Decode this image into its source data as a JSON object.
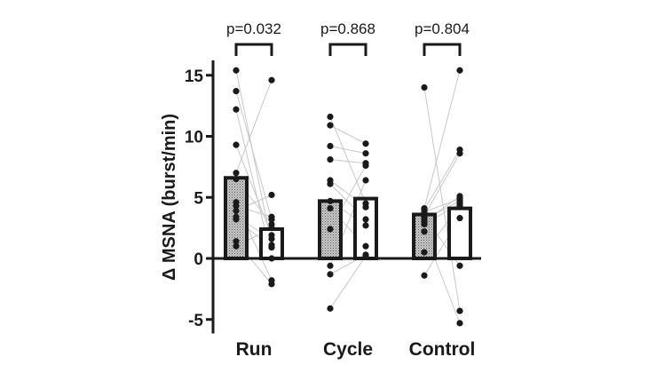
{
  "chart_data": {
    "type": "bar",
    "ylabel": "Δ MSNA (burst/min)",
    "ylim": [
      -6,
      16
    ],
    "yticks": [
      -5,
      0,
      5,
      10,
      15
    ],
    "ytick_labels": [
      "-5",
      "0",
      "5",
      "10",
      "15"
    ],
    "categories": [
      "Run",
      "Cycle",
      "Control"
    ],
    "p_values": [
      "p=0.032",
      "p=0.868",
      "p=0.804"
    ],
    "colors": {
      "pre_bar": "#a8a8a8",
      "post_bar": "#ffffff",
      "outline": "#1a1a1a",
      "lines": "#c8c8c8",
      "points": "#1a1a1a"
    },
    "groups": [
      {
        "category": "Run",
        "bars": [
          6.6,
          2.4
        ],
        "pre": [
          15.4,
          13.7,
          12.2,
          9.3,
          7.0,
          6.5,
          4.6,
          4.3,
          3.9,
          3.4,
          3.2,
          1.4,
          1.0
        ],
        "post": [
          1.1,
          3.2,
          0.0,
          1.9,
          14.6,
          2.8,
          -1.8,
          3.4,
          5.2,
          1.6,
          0.9,
          -2.1,
          2.5
        ]
      },
      {
        "category": "Cycle",
        "bars": [
          4.7,
          4.9
        ],
        "pre": [
          11.6,
          10.9,
          9.2,
          8.1,
          6.4,
          6.1,
          4.7,
          4.1,
          2.4,
          -0.6,
          -1.3,
          -4.1
        ],
        "post": [
          4.5,
          9.4,
          8.6,
          7.8,
          4.2,
          3.2,
          2.7,
          1.0,
          7.6,
          6.4,
          0.3,
          0.2
        ]
      },
      {
        "category": "Control",
        "bars": [
          3.6,
          4.1
        ],
        "pre": [
          14.0,
          4.1,
          4.0,
          3.8,
          3.5,
          3.2,
          3.0,
          2.2,
          0.5,
          -1.4,
          2.8,
          3.4
        ],
        "post": [
          -4.3,
          15.4,
          8.9,
          4.9,
          8.6,
          4.7,
          5.1,
          -5.3,
          4.3,
          3.3,
          4.5,
          -0.6
        ]
      }
    ]
  }
}
